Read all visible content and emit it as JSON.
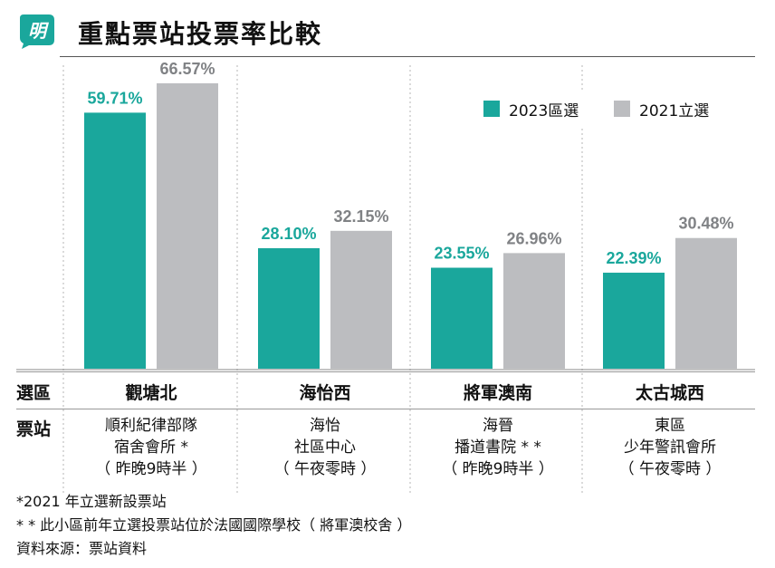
{
  "header": {
    "logo_text": "明",
    "title": "重點票站投票率比較"
  },
  "chart_data": {
    "type": "bar",
    "categories": [
      "觀塘北",
      "海怡西",
      "將軍澳南",
      "太古城西"
    ],
    "series": [
      {
        "name": "2023區選",
        "values": [
          59.71,
          28.1,
          23.55,
          22.39
        ],
        "labels": [
          "59.71%",
          "28.10%",
          "23.55%",
          "22.39%"
        ],
        "color": "#1aa79c"
      },
      {
        "name": "2021立選",
        "values": [
          66.57,
          32.15,
          26.96,
          30.48
        ],
        "labels": [
          "66.57%",
          "32.15%",
          "26.96%",
          "30.48%"
        ],
        "color": "#bcbdc0"
      }
    ],
    "ylim": [
      0,
      75
    ],
    "grid": false,
    "legend": "top-right"
  },
  "table": {
    "row1_label": "選區",
    "row2_label": "票站",
    "stations": [
      "順利紀律部隊\n宿舍會所 *\n（ 昨晚9時半 ）",
      "海怡\n社區中心\n（ 午夜零時 ）",
      "海晉\n播道書院 * *\n（ 昨晚9時半 ）",
      "東區\n少年警訊會所\n（ 午夜零時 ）"
    ]
  },
  "footnotes": {
    "note1": "*2021 年立選新設票站",
    "note2": "* * 此小區前年立選投票站位於法國國際學校（ 將軍澳校舍 ）",
    "source": "資料來源：票站資料"
  }
}
